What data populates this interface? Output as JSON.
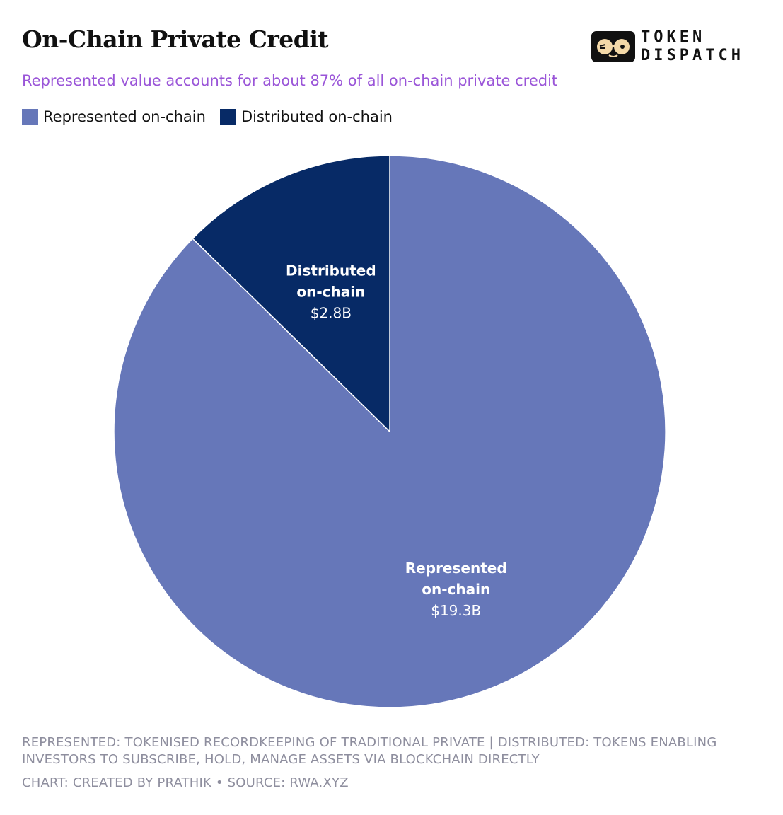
{
  "header": {
    "title": "On-Chain Private Credit",
    "subtitle": "Represented value accounts for about 87% of all on-chain private credit"
  },
  "logo": {
    "line1": "TOKEN",
    "line2": "DISPATCH",
    "icon": "eyes-glasses-icon"
  },
  "colors": {
    "represented": "#6677b9",
    "distributed": "#072a66",
    "subtitle": "#9a55d8",
    "footer": "#8e8e9e"
  },
  "chart_data": {
    "type": "pie",
    "title": "On-Chain Private Credit",
    "subtitle": "Represented value accounts for about 87% of all on-chain private credit",
    "legend_position": "top-left",
    "slices": [
      {
        "name": "Represented on-chain",
        "label_lines": [
          "Represented",
          "on-chain"
        ],
        "value": 19.3,
        "value_label": "$19.3B",
        "color": "#6677b9"
      },
      {
        "name": "Distributed on-chain",
        "label_lines": [
          "Distributed",
          "on-chain"
        ],
        "value": 2.8,
        "value_label": "$2.8B",
        "color": "#072a66"
      }
    ]
  },
  "footer": {
    "note": "REPRESENTED: TOKENISED RECORDKEEPING OF TRADITIONAL PRIVATE | DISTRIBUTED: TOKENS ENABLING INVESTORS TO SUBSCRIBE, HOLD, MANAGE ASSETS VIA BLOCKCHAIN DIRECTLY",
    "credit": "CHART: CREATED BY PRATHIK • SOURCE: RWA.XYZ"
  }
}
